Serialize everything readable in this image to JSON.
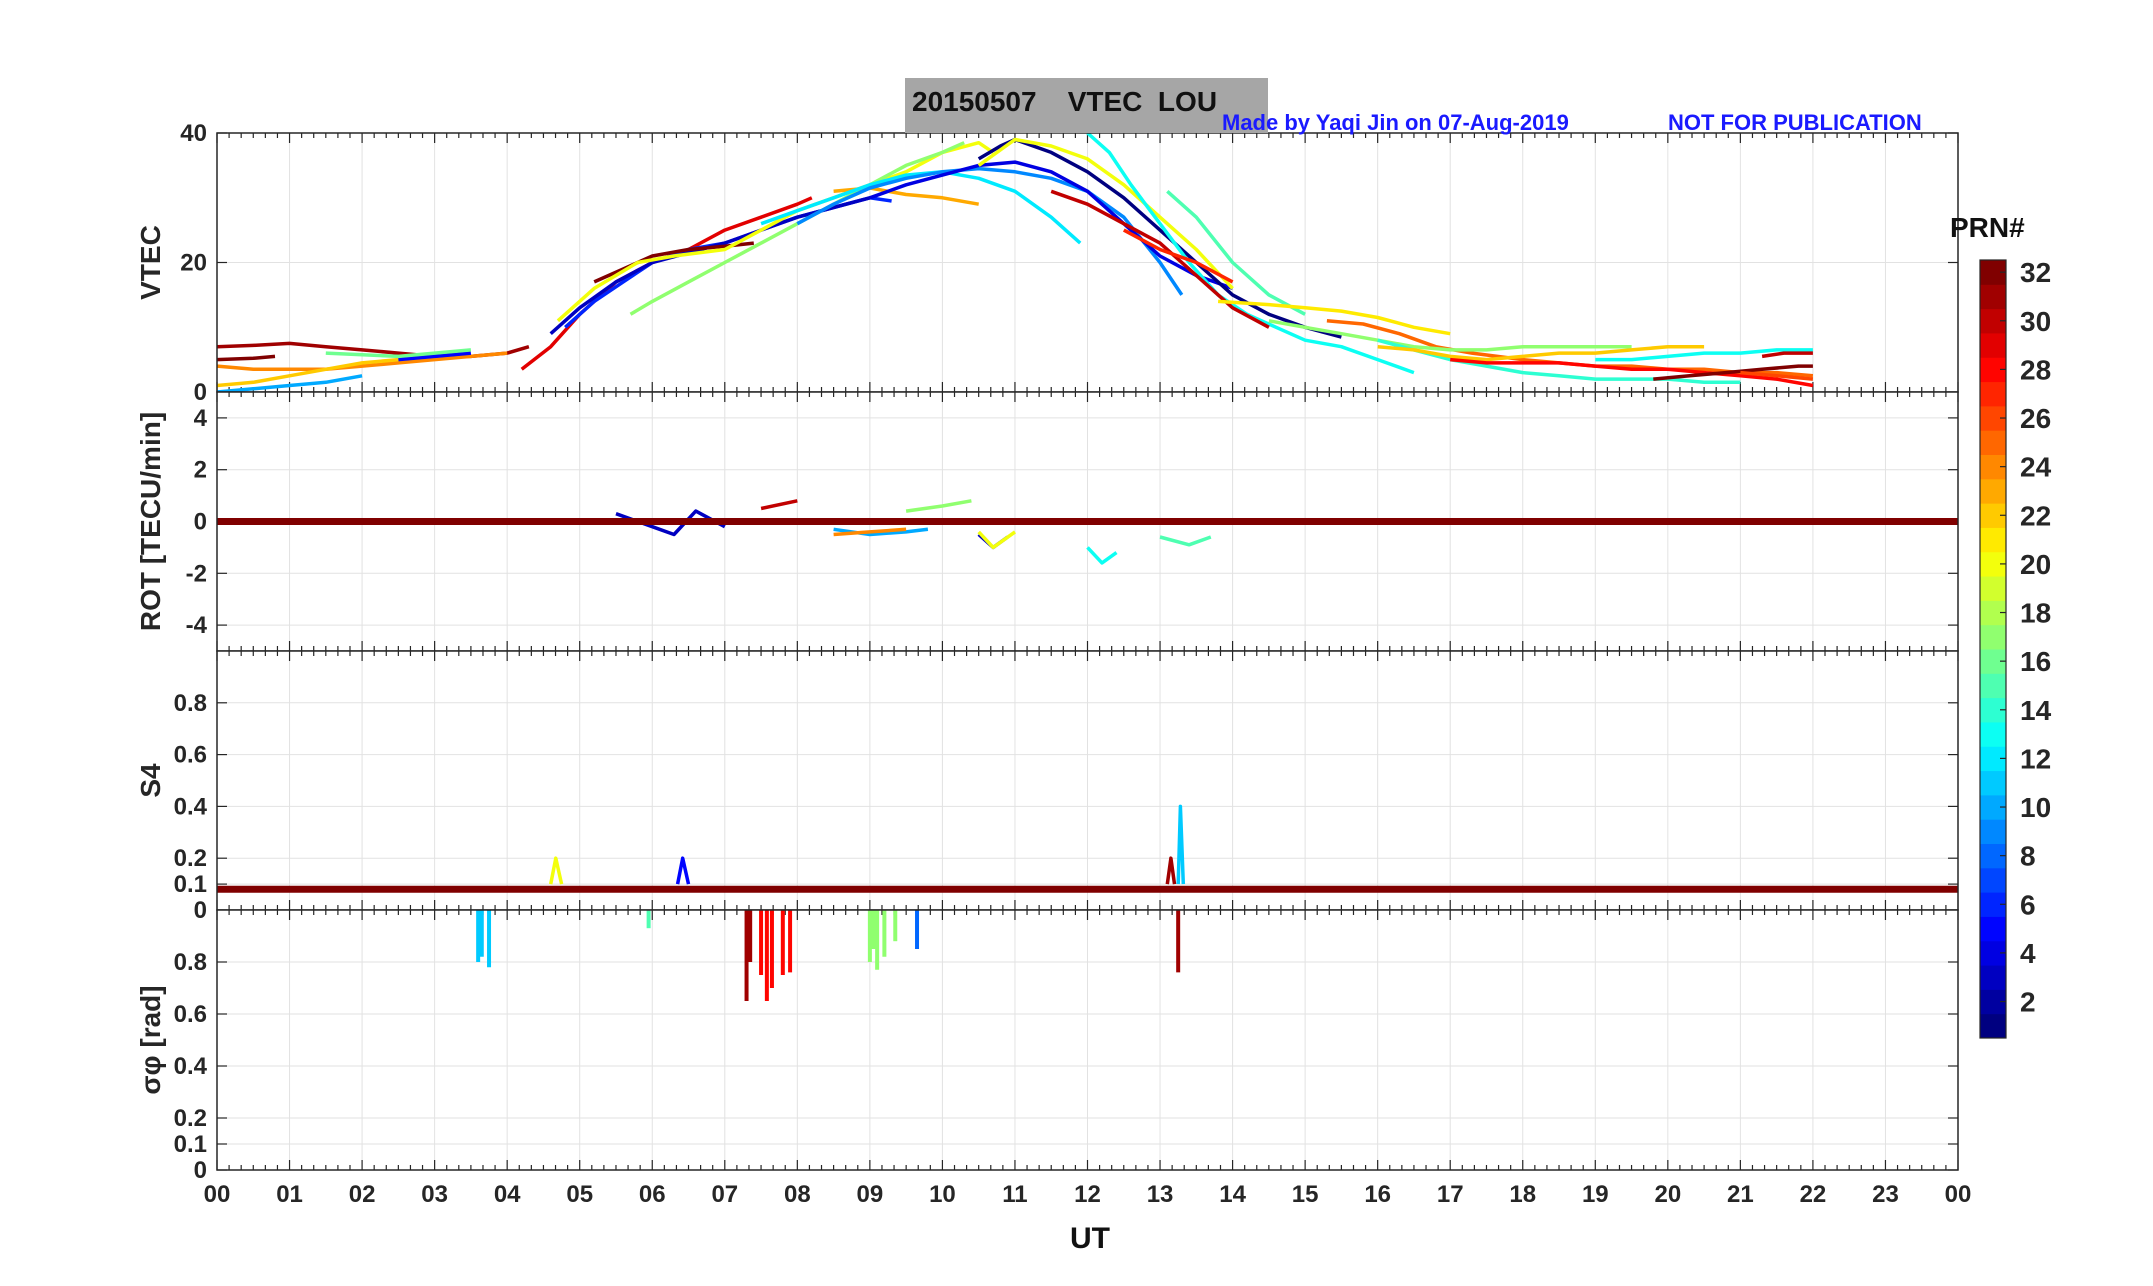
{
  "title": "20150507    VTEC  LOU",
  "credit": "Made by Yaqi Jin on 07-Aug-2019",
  "notice": "NOT FOR PUBLICATION",
  "colorbar": {
    "title": "PRN#",
    "ticks": [
      "2",
      "4",
      "6",
      "8",
      "10",
      "12",
      "14",
      "16",
      "18",
      "20",
      "22",
      "24",
      "26",
      "28",
      "30",
      "32"
    ],
    "range": [
      1,
      32
    ],
    "colormap": "jet"
  },
  "chart_data": [
    {
      "type": "line",
      "panel": "VTEC",
      "ylabel": "VTEC",
      "xlabel": "UT",
      "xlim": [
        0,
        24
      ],
      "ylim": [
        0,
        40
      ],
      "yticks": [
        "0",
        "20",
        "40"
      ],
      "xticks": [
        "00",
        "01",
        "02",
        "03",
        "04",
        "05",
        "06",
        "07",
        "08",
        "09",
        "10",
        "11",
        "12",
        "13",
        "14",
        "15",
        "16",
        "17",
        "18",
        "19",
        "20",
        "21",
        "22",
        "23",
        "00"
      ],
      "grid": true,
      "series": [
        {
          "prn": 31,
          "x": [
            0,
            0.5,
            1.0,
            1.5,
            2.0,
            2.5,
            3.0,
            3.5,
            4.0,
            4.3
          ],
          "y": [
            7,
            7.2,
            7.5,
            7,
            6.5,
            6,
            5.5,
            5.5,
            6,
            7
          ]
        },
        {
          "prn": 10,
          "x": [
            0,
            0.5,
            1.0,
            1.5,
            2.0
          ],
          "y": [
            0,
            0.5,
            1,
            1.5,
            2.5
          ]
        },
        {
          "prn": 24,
          "x": [
            0,
            0.5,
            1.0,
            1.5,
            2.0,
            2.5,
            3.0,
            3.5,
            4.0
          ],
          "y": [
            4,
            3.5,
            3.5,
            3.5,
            4,
            4.5,
            5,
            5.5,
            6
          ]
        },
        {
          "prn": 22,
          "x": [
            0,
            0.5,
            1.0,
            1.5,
            2.0,
            2.5,
            3.0
          ],
          "y": [
            1,
            1.5,
            2.5,
            3.5,
            4.5,
            5,
            5.5
          ]
        },
        {
          "prn": 32,
          "x": [
            0,
            0.5,
            0.8
          ],
          "y": [
            5,
            5.2,
            5.5
          ]
        },
        {
          "prn": 5,
          "x": [
            2.5,
            3.0,
            3.5
          ],
          "y": [
            5,
            5.5,
            6
          ]
        },
        {
          "prn": 16,
          "x": [
            1.5,
            2.5,
            3.5
          ],
          "y": [
            6,
            5.5,
            6.5
          ]
        },
        {
          "prn": 29,
          "x": [
            4.2,
            4.6,
            5.0,
            5.5,
            6.0,
            6.5,
            7.0,
            7.5,
            8.0,
            8.2
          ],
          "y": [
            3.5,
            7,
            12,
            17,
            20,
            22,
            25,
            27,
            29,
            30
          ]
        },
        {
          "prn": 6,
          "x": [
            4.8,
            5.2,
            5.6,
            6.0,
            6.5,
            7.0,
            7.5,
            8.0,
            8.5,
            9.0,
            9.3
          ],
          "y": [
            10,
            14,
            17,
            20,
            22,
            23,
            25,
            27,
            28.5,
            30,
            29.5
          ]
        },
        {
          "prn": 3,
          "x": [
            4.6,
            5.0,
            5.5,
            6.0,
            6.5,
            7.0,
            7.5,
            8.0,
            8.5,
            9.0
          ],
          "y": [
            9,
            13,
            17,
            20,
            21.5,
            23,
            25,
            27,
            28.5,
            30
          ]
        },
        {
          "prn": 32,
          "x": [
            5.2,
            5.6,
            6.0,
            6.5,
            7.0,
            7.4
          ],
          "y": [
            17,
            19,
            21,
            22,
            22.5,
            23
          ]
        },
        {
          "prn": 20,
          "x": [
            4.7,
            5.2,
            5.8,
            6.3,
            7.0,
            7.5,
            8.0,
            8.5,
            9.0,
            9.5,
            10.0,
            10.5,
            10.7
          ],
          "y": [
            11,
            16,
            20,
            21,
            22,
            25,
            28,
            30,
            32,
            34,
            37,
            38.5,
            37
          ]
        },
        {
          "prn": 17,
          "x": [
            5.7,
            6.0,
            6.5,
            7.0,
            7.5,
            8.0,
            8.5,
            9.0,
            9.5,
            10.0,
            10.3
          ],
          "y": [
            12,
            14,
            17,
            20,
            23,
            26,
            29,
            32,
            35,
            37,
            38.5
          ]
        },
        {
          "prn": 23,
          "x": [
            8.5,
            9.0,
            9.5,
            10.0,
            10.5
          ],
          "y": [
            31,
            31.5,
            30.5,
            30,
            29
          ]
        },
        {
          "prn": 12,
          "x": [
            7.5,
            8.0,
            8.5,
            9.0,
            9.5,
            10.0,
            10.5,
            11.0,
            11.5,
            11.9
          ],
          "y": [
            26,
            28,
            30,
            32,
            33.5,
            34,
            33,
            31,
            27,
            23
          ]
        },
        {
          "prn": 9,
          "x": [
            8.0,
            8.5,
            9.0,
            9.5,
            10.0,
            10.5,
            11.0,
            11.5,
            12.0,
            12.5,
            13.0,
            13.3
          ],
          "y": [
            26,
            29,
            31.5,
            33,
            34,
            34.5,
            34,
            33,
            31,
            27,
            20,
            15
          ]
        },
        {
          "prn": 4,
          "x": [
            9.0,
            9.5,
            10.0,
            10.5,
            11.0,
            11.5,
            12.0,
            12.5,
            13.0,
            13.5,
            14.0
          ],
          "y": [
            30,
            32,
            33.5,
            35,
            35.5,
            34,
            31,
            26,
            21,
            18,
            16
          ]
        },
        {
          "prn": 1,
          "x": [
            10.5,
            10.8,
            11.0,
            11.5,
            12.0,
            12.5,
            13.0,
            13.5,
            14.0,
            14.5,
            15.0,
            15.5
          ],
          "y": [
            36,
            38,
            39,
            37,
            34,
            30,
            25,
            20,
            15,
            12,
            10,
            8.5
          ]
        },
        {
          "prn": 20,
          "x": [
            10.5,
            11.0,
            11.5,
            12.0,
            12.5,
            13.0,
            13.5,
            14.0
          ],
          "y": [
            35,
            39,
            38,
            36,
            32,
            27,
            22,
            16
          ]
        },
        {
          "prn": 13,
          "x": [
            12.0,
            12.3,
            12.6,
            13.0,
            13.4,
            13.8,
            14.2,
            14.6,
            15.0,
            15.5,
            16.0,
            16.5
          ],
          "y": [
            40,
            37,
            32,
            26,
            20,
            15,
            12,
            10,
            8,
            7,
            5,
            3
          ]
        },
        {
          "prn": 15,
          "x": [
            13.1,
            13.5,
            14.0,
            14.5,
            15.0
          ],
          "y": [
            31,
            27,
            20,
            15,
            12
          ]
        },
        {
          "prn": 30,
          "x": [
            11.5,
            12.0,
            12.5,
            13.0,
            13.5,
            14.0,
            14.5
          ],
          "y": [
            31,
            29,
            26,
            23,
            18,
            13,
            10
          ]
        },
        {
          "prn": 27,
          "x": [
            12.5,
            13.0,
            13.5,
            14.0
          ],
          "y": [
            25,
            22,
            20,
            17
          ]
        },
        {
          "prn": 21,
          "x": [
            13.8,
            14.5,
            15.0,
            15.5,
            16.0,
            16.5,
            17.0
          ],
          "y": [
            14,
            13.5,
            13,
            12.5,
            11.5,
            10,
            9
          ]
        },
        {
          "prn": 25,
          "x": [
            15.3,
            15.8,
            16.3,
            16.8,
            17.3,
            18.0,
            18.5,
            19.0,
            19.5,
            20.0,
            20.5,
            21.0,
            21.5,
            22.0
          ],
          "y": [
            11,
            10.5,
            9,
            7,
            6,
            5,
            4.5,
            4,
            4,
            3.5,
            3.5,
            3,
            3,
            2.5
          ]
        },
        {
          "prn": 17,
          "x": [
            14.5,
            15.0,
            15.5,
            16.0,
            16.5,
            17.0,
            17.5,
            18.0,
            18.5,
            19.0,
            19.5
          ],
          "y": [
            11,
            10,
            9,
            8,
            7,
            6.5,
            6.5,
            7,
            7,
            7,
            7
          ]
        },
        {
          "prn": 14,
          "x": [
            16.0,
            16.5,
            17.0,
            17.5,
            18.0,
            18.5,
            19.0,
            19.5,
            20.0,
            20.5,
            21.0
          ],
          "y": [
            8,
            6.5,
            5,
            4,
            3,
            2.5,
            2,
            2,
            2,
            1.5,
            1.5
          ]
        },
        {
          "prn": 22,
          "x": [
            16.0,
            16.5,
            17.0,
            17.5,
            18.0,
            18.5,
            19.0,
            19.5,
            20.0,
            20.5
          ],
          "y": [
            7,
            6.5,
            5.5,
            5,
            5.5,
            6,
            6,
            6.5,
            7,
            7
          ]
        },
        {
          "prn": 13,
          "x": [
            19.0,
            19.5,
            20.0,
            20.5,
            21.0,
            21.5,
            22.0
          ],
          "y": [
            5,
            5,
            5.5,
            6,
            6,
            6.5,
            6.5
          ]
        },
        {
          "prn": 28,
          "x": [
            17.0,
            17.5,
            18.0,
            18.5,
            19.0,
            19.5,
            20.0,
            20.5,
            21.0,
            21.5,
            22.0
          ],
          "y": [
            5,
            4.5,
            4.5,
            4.5,
            4,
            3.5,
            3.5,
            3,
            2.5,
            2,
            1
          ]
        },
        {
          "prn": 32,
          "x": [
            19.8,
            20.3,
            20.8,
            21.3,
            21.8,
            22.0
          ],
          "y": [
            2,
            2.5,
            3,
            3.5,
            4,
            4
          ]
        },
        {
          "prn": 26,
          "x": [
            21.0,
            21.5,
            22.0
          ],
          "y": [
            3,
            2.5,
            2
          ]
        },
        {
          "prn": 30,
          "x": [
            21.3,
            21.6,
            22.0
          ],
          "y": [
            5.5,
            6,
            6
          ]
        }
      ]
    },
    {
      "type": "line",
      "panel": "ROT",
      "ylabel": "ROT [TECU/min]",
      "xlim": [
        0,
        24
      ],
      "ylim": [
        -5,
        5
      ],
      "yticks": [
        "-4",
        "-2",
        "0",
        "2",
        "4"
      ],
      "grid": true,
      "series": [
        {
          "prn": 3,
          "x": [
            5.5,
            6.0,
            6.3,
            6.6,
            7.0
          ],
          "y": [
            0.3,
            -0.2,
            -0.5,
            0.4,
            -0.2
          ]
        },
        {
          "prn": 10,
          "x": [
            8.5,
            9.0,
            9.5,
            9.8
          ],
          "y": [
            -0.3,
            -0.5,
            -0.4,
            -0.3
          ]
        },
        {
          "prn": 24,
          "x": [
            8.5,
            9.0,
            9.5
          ],
          "y": [
            -0.5,
            -0.4,
            -0.3
          ]
        },
        {
          "prn": 17,
          "x": [
            9.5,
            10.0,
            10.4
          ],
          "y": [
            0.4,
            0.6,
            0.8
          ]
        },
        {
          "prn": 3,
          "x": [
            10.5,
            10.7,
            10.9
          ],
          "y": [
            -0.5,
            -1.0,
            -0.6
          ]
        },
        {
          "prn": 20,
          "x": [
            10.5,
            10.7,
            11.0
          ],
          "y": [
            -0.4,
            -1.0,
            -0.4
          ]
        },
        {
          "prn": 13,
          "x": [
            12.0,
            12.2,
            12.4
          ],
          "y": [
            -1.0,
            -1.6,
            -1.2
          ]
        },
        {
          "prn": 15,
          "x": [
            13.0,
            13.4,
            13.7
          ],
          "y": [
            -0.6,
            -0.9,
            -0.6
          ]
        },
        {
          "prn": 30,
          "x": [
            7.5,
            8.0
          ],
          "y": [
            0.5,
            0.8
          ]
        },
        {
          "prn": 32,
          "x": [
            0,
            24
          ],
          "y": [
            0,
            0
          ]
        }
      ]
    },
    {
      "type": "line",
      "panel": "S4",
      "ylabel": "S4",
      "xlim": [
        0,
        24
      ],
      "ylim": [
        0,
        1
      ],
      "yticks": [
        "0",
        "0.1",
        "0.2",
        "0.4",
        "0.6",
        "0.8"
      ],
      "grid": true,
      "series": [
        {
          "prn": 11,
          "x": [
            13.25,
            13.28,
            13.32
          ],
          "y": [
            0.1,
            0.4,
            0.1
          ]
        },
        {
          "prn": 5,
          "x": [
            6.35,
            6.42,
            6.5
          ],
          "y": [
            0.1,
            0.2,
            0.1
          ]
        },
        {
          "prn": 20,
          "x": [
            4.6,
            4.67,
            4.75
          ],
          "y": [
            0.1,
            0.2,
            0.1
          ]
        },
        {
          "prn": 31,
          "x": [
            13.1,
            13.15,
            13.2
          ],
          "y": [
            0.1,
            0.2,
            0.1
          ]
        },
        {
          "prn": 32,
          "x": [
            0,
            24
          ],
          "y": [
            0.08,
            0.08
          ]
        }
      ]
    },
    {
      "type": "bar",
      "panel": "sigma_phi",
      "ylabel": "σφ [rad]",
      "xlim": [
        0,
        24
      ],
      "ylim": [
        0,
        1
      ],
      "yticks": [
        "0",
        "0.1",
        "0.2",
        "0.4",
        "0.6",
        "0.8"
      ],
      "grid": true,
      "series": [
        {
          "prn": 11,
          "x": [
            3.6,
            3.65,
            3.75
          ],
          "y": [
            0.8,
            0.82,
            0.78
          ]
        },
        {
          "prn": 31,
          "x": [
            7.3,
            7.35
          ],
          "y": [
            0.65,
            0.8
          ]
        },
        {
          "prn": 28,
          "x": [
            7.5,
            7.58,
            7.65,
            7.8,
            7.9
          ],
          "y": [
            0.75,
            0.65,
            0.7,
            0.75,
            0.76
          ]
        },
        {
          "prn": 17,
          "x": [
            9.0,
            9.05,
            9.1,
            9.2,
            9.35
          ],
          "y": [
            0.8,
            0.85,
            0.77,
            0.82,
            0.88
          ]
        },
        {
          "prn": 8,
          "x": [
            9.65
          ],
          "y": [
            0.85
          ]
        },
        {
          "prn": 15,
          "x": [
            5.95
          ],
          "y": [
            0.93
          ]
        },
        {
          "prn": 31,
          "x": [
            13.25
          ],
          "y": [
            0.76
          ]
        }
      ]
    }
  ]
}
